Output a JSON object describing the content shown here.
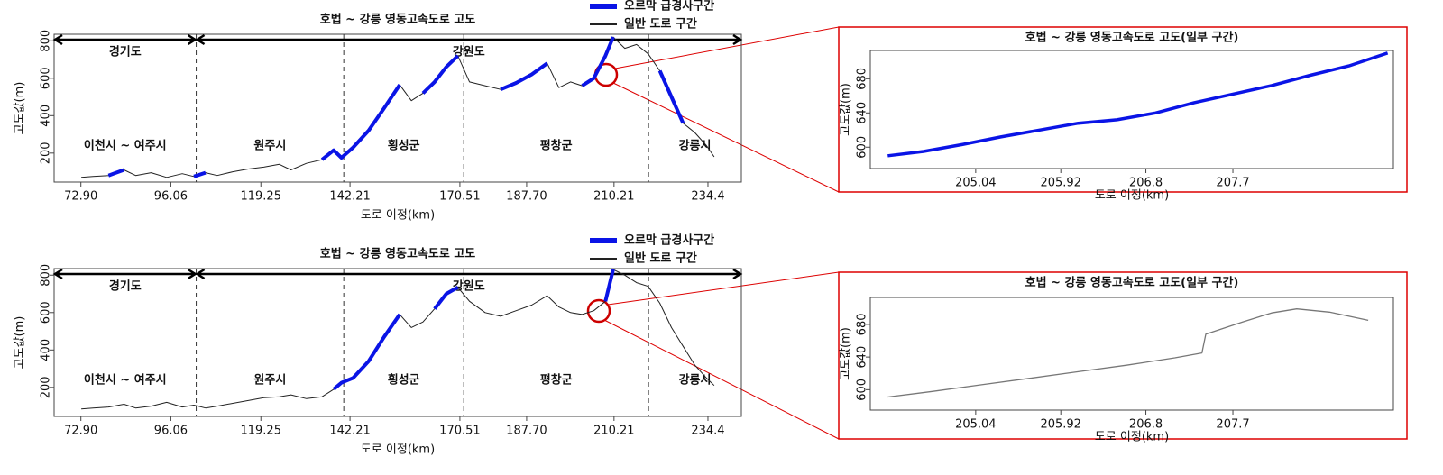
{
  "chart_data": [
    {
      "type": "line",
      "title": "호법 ~ 강릉 영동고속도로 고도",
      "xlabel": "도로 이정(km)",
      "ylabel": "고도값(m)",
      "legend": "top-right",
      "x": [
        73,
        76,
        80,
        84,
        87,
        91,
        95,
        99,
        102,
        105,
        108,
        112,
        116,
        120,
        124,
        127,
        131,
        135,
        138,
        140,
        143,
        147,
        151,
        155,
        158,
        161,
        164,
        167,
        170,
        173,
        177,
        181,
        185,
        189,
        193,
        196,
        199,
        202,
        205,
        208,
        210,
        213,
        216,
        219,
        222,
        225,
        228,
        231,
        234,
        236
      ],
      "series": [
        {
          "name": "일반 도로 구간",
          "color": "#222222",
          "values": [
            70,
            75,
            80,
            110,
            80,
            95,
            70,
            90,
            75,
            95,
            80,
            100,
            115,
            125,
            140,
            110,
            145,
            165,
            215,
            175,
            230,
            320,
            440,
            565,
            480,
            520,
            580,
            660,
            720,
            580,
            560,
            540,
            575,
            620,
            680,
            550,
            580,
            560,
            600,
            720,
            820,
            760,
            780,
            730,
            640,
            500,
            360,
            310,
            240,
            180
          ]
        },
        {
          "name": "오르막 급경사구간",
          "color": "#0a14e6",
          "values": [
            null,
            null,
            80,
            110,
            null,
            null,
            null,
            null,
            75,
            95,
            null,
            null,
            null,
            null,
            null,
            null,
            null,
            165,
            215,
            175,
            230,
            320,
            440,
            565,
            null,
            520,
            580,
            660,
            720,
            null,
            null,
            540,
            575,
            620,
            680,
            null,
            null,
            560,
            600,
            720,
            820,
            null,
            null,
            null,
            640,
            500,
            360,
            null,
            null,
            null
          ]
        }
      ],
      "xlim": [
        66,
        243
      ],
      "ylim": [
        45,
        835
      ],
      "xticks": [
        {
          "value": 72.9,
          "label": "72.90"
        },
        96.06,
        119.25,
        142.21,
        170.51,
        {
          "value": 187.7,
          "label": "187.70"
        },
        210.21,
        234.4
      ],
      "yticks": [
        200,
        400,
        600,
        800
      ],
      "provinces": [
        {
          "label": "경기도",
          "start": 66,
          "end": 102.6
        },
        {
          "label": "강원도",
          "start": 102.6,
          "end": 243
        }
      ],
      "cities": [
        {
          "label": "이천시 ~ 여주시",
          "start": 66,
          "end": 102.6
        },
        {
          "label": "원주시",
          "start": 102.6,
          "end": 140.6
        },
        {
          "label": "횡성군",
          "start": 140.6,
          "end": 171.5
        },
        {
          "label": "평창군",
          "start": 171.5,
          "end": 219.1
        },
        {
          "label": "강릉시",
          "start": 219.1,
          "end": 243
        }
      ]
    },
    {
      "type": "line",
      "title": "호법 ~ 강릉 영동고속도로 고도(일부 구간)",
      "xlabel": "도로 이정(km)",
      "ylabel": "고도값(m)",
      "x": [
        204.13,
        204.5,
        204.9,
        205.3,
        205.7,
        206.1,
        206.5,
        206.9,
        207.3,
        207.7,
        208.1,
        208.5,
        208.9,
        209.3
      ],
      "series": [
        {
          "color": "#0a14e6",
          "values": [
            590,
            595,
            603,
            612,
            620,
            628,
            632,
            640,
            652,
            662,
            672,
            684,
            695,
            710
          ]
        }
      ],
      "xlim": [
        203.95,
        209.36
      ],
      "ylim": [
        575,
        713
      ],
      "xticks": [
        205.04,
        205.92,
        206.8,
        207.7
      ],
      "yticks": [
        600,
        640,
        680
      ]
    },
    {
      "type": "line",
      "title": "호법 ~ 강릉 영동고속도로 고도",
      "xlabel": "도로 이정(km)",
      "ylabel": "고도값(m)",
      "legend": "top-right",
      "x": [
        73,
        76,
        80,
        84,
        87,
        91,
        95,
        99,
        102,
        105,
        108,
        112,
        116,
        120,
        124,
        127,
        131,
        135,
        138,
        140,
        143,
        147,
        151,
        155,
        158,
        161,
        164,
        167,
        170,
        173,
        177,
        181,
        185,
        189,
        193,
        196,
        199,
        202,
        205,
        208,
        210,
        213,
        216,
        219,
        222,
        225,
        228,
        231,
        234,
        236
      ],
      "series": [
        {
          "name": "일반 도로 구간",
          "color": "#222222",
          "values": [
            85,
            90,
            95,
            110,
            90,
            100,
            120,
            95,
            105,
            90,
            100,
            115,
            130,
            145,
            150,
            160,
            140,
            150,
            190,
            225,
            250,
            340,
            470,
            590,
            520,
            550,
            620,
            700,
            735,
            660,
            600,
            580,
            610,
            640,
            690,
            630,
            600,
            590,
            610,
            660,
            830,
            800,
            760,
            740,
            650,
            520,
            420,
            320,
            250,
            210
          ]
        },
        {
          "name": "오르막 급경사구간",
          "color": "#0a14e6",
          "values": [
            null,
            null,
            null,
            null,
            null,
            null,
            null,
            null,
            null,
            null,
            null,
            null,
            null,
            null,
            null,
            null,
            null,
            null,
            190,
            225,
            250,
            340,
            470,
            590,
            null,
            null,
            620,
            700,
            735,
            null,
            null,
            null,
            null,
            null,
            null,
            null,
            null,
            null,
            null,
            660,
            830,
            null,
            null,
            null,
            null,
            null,
            null,
            null,
            null,
            null
          ]
        }
      ],
      "xlim": [
        66,
        243
      ],
      "ylim": [
        45,
        835
      ],
      "xticks": [
        {
          "value": 72.9,
          "label": "72.90"
        },
        96.06,
        119.25,
        142.21,
        170.51,
        {
          "value": 187.7,
          "label": "187.70"
        },
        210.21,
        234.4
      ],
      "yticks": [
        200,
        400,
        600,
        800
      ],
      "provinces": [
        {
          "label": "경기도",
          "start": 66,
          "end": 102.6
        },
        {
          "label": "강원도",
          "start": 102.6,
          "end": 243
        }
      ],
      "cities": [
        {
          "label": "이천시 ~ 여주시",
          "start": 66,
          "end": 102.6
        },
        {
          "label": "원주시",
          "start": 102.6,
          "end": 140.6
        },
        {
          "label": "횡성군",
          "start": 140.6,
          "end": 171.5
        },
        {
          "label": "평창군",
          "start": 171.5,
          "end": 219.1
        },
        {
          "label": "강릉시",
          "start": 219.1,
          "end": 243
        }
      ]
    },
    {
      "type": "line",
      "title": "호법 ~ 강릉 영동고속도로 고도(일부 구간)",
      "xlabel": "도로 이정(km)",
      "ylabel": "고도값(m)",
      "x": [
        204.13,
        204.6,
        205.1,
        205.6,
        206.1,
        206.6,
        207.1,
        207.38,
        207.42,
        207.8,
        208.1,
        208.36,
        208.7,
        209.1
      ],
      "series": [
        {
          "color": "#777777",
          "values": [
            591,
            598,
            606,
            614,
            622,
            630,
            639,
            645,
            668,
            683,
            694,
            699,
            695,
            685
          ]
        }
      ],
      "xlim": [
        203.95,
        209.36
      ],
      "ylim": [
        575,
        713
      ],
      "xticks": [
        205.04,
        205.92,
        206.8,
        207.7
      ],
      "yticks": [
        600,
        640,
        680
      ]
    }
  ]
}
